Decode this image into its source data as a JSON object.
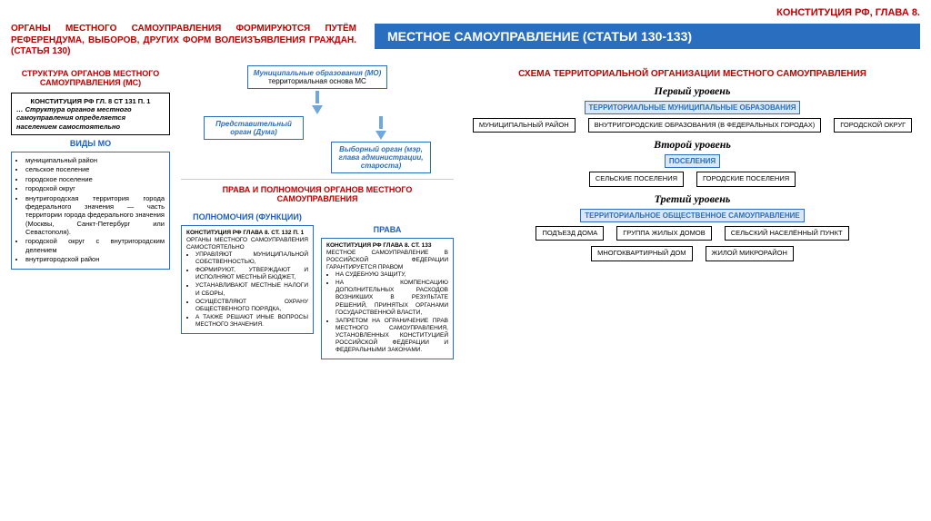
{
  "corner": "КОНСТИТУЦИЯ РФ, ГЛАВА 8.",
  "intro": "ОРГАНЫ МЕСТНОГО САМОУПРАВЛЕНИЯ ФОРМИРУЮТСЯ ПУТЁМ РЕФЕРЕНДУМА, ВЫБОРОВ, ДРУГИХ ФОРМ ВОЛЕИЗЪЯВЛЕНИЯ ГРАЖДАН.(СТАТЬЯ 130)",
  "banner": "МЕСТНОЕ САМОУПРАВЛЕНИЕ (СТАТЬИ 130-133)",
  "structure_title": "СТРУКТУРА ОРГАНОВ МЕСТНОГО САМОУПРАВЛЕНИЯ (МС)",
  "const_box": {
    "head": "КОНСТИТУЦИЯ РФ ГЛ. 8 СТ 131 П. 1",
    "body": "… Структура органов местного самоуправления определяется населением самостоятельно"
  },
  "mo_types_title": "ВИДЫ МО",
  "mo_types": [
    "муниципальный район",
    "сельское поселение",
    "городское поселение",
    "городской округ",
    "внутригородская территория города федерального значения — часть территории города федерального значения (Москвы, Санкт-Петербург или Севастополя).",
    "городской округ с внутригородским делением",
    "внутригородской район"
  ],
  "flow": {
    "a": "Муниципальные образования (МО)",
    "a2": "территориальная основа МС",
    "b": "Представительный орган (Дума)",
    "c": "Выборный орган (мэр, глава администрации, староста)"
  },
  "rights_title": "ПРАВА И ПОЛНОМОЧИЯ ОРГАНОВ МЕСТНОГО САМОУПРАВЛЕНИЯ",
  "powers_title": "ПОЛНОМОЧИЯ (ФУНКЦИИ)",
  "rights_label": "ПРАВА",
  "powers_box": {
    "head": "КОНСТИТУЦИЯ РФ ГЛАВА 8. СТ. 132 П. 1",
    "lead": "ОРГАНЫ МЕСТНОГО САМОУПРАВЛЕНИЯ САМОСТОЯТЕЛЬНО",
    "items": [
      "УПРАВЛЯЮТ МУНИЦИПАЛЬНОЙ СОБСТВЕННОСТЬЮ,",
      "ФОРМИРУЮТ, УТВЕРЖДАЮТ И ИСПОЛНЯЮТ МЕСТНЫЙ БЮДЖЕТ,",
      "УСТАНАВЛИВАЮТ МЕСТНЫЕ НАЛОГИ И СБОРЫ,",
      "ОСУЩЕСТВЛЯЮТ ОХРАНУ ОБЩЕСТВЕННОГО ПОРЯДКА,",
      "А ТАКЖЕ РЕШАЮТ ИНЫЕ ВОПРОСЫ МЕСТНОГО ЗНАЧЕНИЯ."
    ]
  },
  "rights_box": {
    "head": "КОНСТИТУЦИЯ РФ ГЛАВА 8. СТ. 133",
    "lead": "МЕСТНОЕ САМОУПРАВЛЕНИЕ В РОССИЙСКОЙ ФЕДЕРАЦИИ ГАРАНТИРУЕТСЯ ПРАВОМ",
    "items": [
      "НА СУДЕБНУЮ ЗАЩИТУ,",
      "НА КОМПЕНСАЦИЮ ДОПОЛНИТЕЛЬНЫХ РАСХОДОВ ВОЗНИКШИХ В РЕЗУЛЬТАТЕ РЕШЕНИЙ, ПРИНЯТЫХ ОРГАНАМИ ГОСУДАРСТВЕННОЙ ВЛАСТИ,",
      "ЗАПРЕТОМ НА ОГРАНИЧЕНИЕ ПРАВ МЕСТНОГО САМОУПРАВЛЕНИЯ, УСТАНОВЛЕННЫХ КОНСТИТУЦИЕЙ РОССИЙСКОЙ ФЕДЕРАЦИИ И ФЕДЕРАЛЬНЫМИ ЗАКОНАМИ."
    ]
  },
  "scheme_title": "СХЕМА ТЕРРИТОРИАЛЬНОЙ ОРГАНИЗАЦИИ МЕСТНОГО САМОУПРАВЛЕНИЯ",
  "levels": {
    "l1": "Первый уровень",
    "b1": "ТЕРРИТОРИАЛЬНЫЕ МУНИЦИПАЛЬНЫЕ ОБРАЗОВАНИЯ",
    "r1": [
      "МУНИЦИПАЛЬНЫЙ РАЙОН",
      "ВНУТРИГОРОДСКИЕ ОБРАЗОВАНИЯ (В ФЕДЕРАЛЬНЫХ ГОРОДАХ)",
      "ГОРОДСКОЙ ОКРУГ"
    ],
    "l2": "Второй уровень",
    "b2": "ПОСЕЛЕНИЯ",
    "r2": [
      "СЕЛЬСКИЕ ПОСЕЛЕНИЯ",
      "ГОРОДСКИЕ ПОСЕЛЕНИЯ"
    ],
    "l3": "Третий уровень",
    "b3": "ТЕРРИТОРИАЛЬНОЕ ОБЩЕСТВЕННОЕ САМОУПРАВЛЕНИЕ",
    "r3a": [
      "ПОДЪЕЗД ДОМА",
      "ГРУППА ЖИЛЫХ ДОМОВ",
      "СЕЛЬСКИЙ НАСЕЛЁННЫЙ ПУНКТ"
    ],
    "r3b": [
      "МНОГОКВАРТИРНЫЙ ДОМ",
      "ЖИЛОЙ МИКРОРАЙОН"
    ]
  },
  "colors": {
    "red": "#c00000",
    "blue": "#2a6fbf",
    "lightblue": "#dae8f5",
    "arrow": "#6fa8dc"
  }
}
